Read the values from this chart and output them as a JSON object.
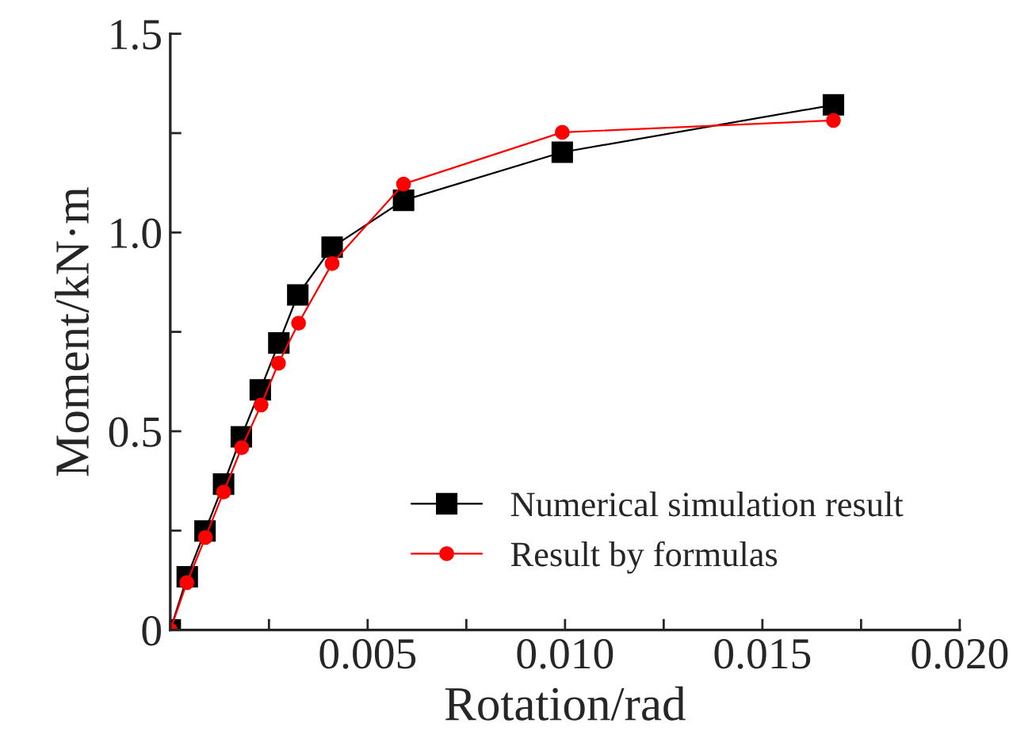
{
  "chart_data": {
    "type": "line",
    "xlabel": "Rotation/rad",
    "ylabel": "Moment/kN·m",
    "xlim": [
      0,
      0.02
    ],
    "ylim": [
      0,
      1.5
    ],
    "xticks": [
      {
        "value": 0,
        "label": null
      },
      {
        "value": 0.0025,
        "label": null
      },
      {
        "value": 0.005,
        "label": "0.005"
      },
      {
        "value": 0.0075,
        "label": null
      },
      {
        "value": 0.01,
        "label": "0.010"
      },
      {
        "value": 0.0125,
        "label": null
      },
      {
        "value": 0.015,
        "label": "0.015"
      },
      {
        "value": 0.0175,
        "label": null
      },
      {
        "value": 0.02,
        "label": "0.020"
      }
    ],
    "yticks": [
      0,
      {
        "value": 0.25,
        "label": null
      },
      0.5,
      {
        "value": 0.75,
        "label": null
      },
      {
        "value": 1.0,
        "label": "1.0"
      },
      {
        "value": 1.25,
        "label": null
      },
      1.5
    ],
    "grid": false,
    "legend": "bottom right",
    "series": [
      {
        "name": "Numerical simulation result",
        "color": "#000000",
        "marker": "square",
        "x": [
          0,
          0.00043,
          0.00088,
          0.00135,
          0.0018,
          0.00228,
          0.00275,
          0.00323,
          0.0041,
          0.00591,
          0.00993,
          0.0168
        ],
        "values": [
          0,
          0.134,
          0.249,
          0.367,
          0.486,
          0.604,
          0.722,
          0.843,
          0.963,
          1.081,
          1.202,
          1.321
        ]
      },
      {
        "name": "Result by formulas",
        "color": "#ff0000",
        "marker": "circle",
        "x": [
          0,
          0.00042,
          0.00089,
          0.00135,
          0.00181,
          0.0023,
          0.00274,
          0.00325,
          0.0041,
          0.00591,
          0.00993,
          0.0168
        ],
        "values": [
          0,
          0.119,
          0.233,
          0.347,
          0.459,
          0.566,
          0.671,
          0.772,
          0.922,
          1.122,
          1.252,
          1.282
        ]
      }
    ]
  }
}
